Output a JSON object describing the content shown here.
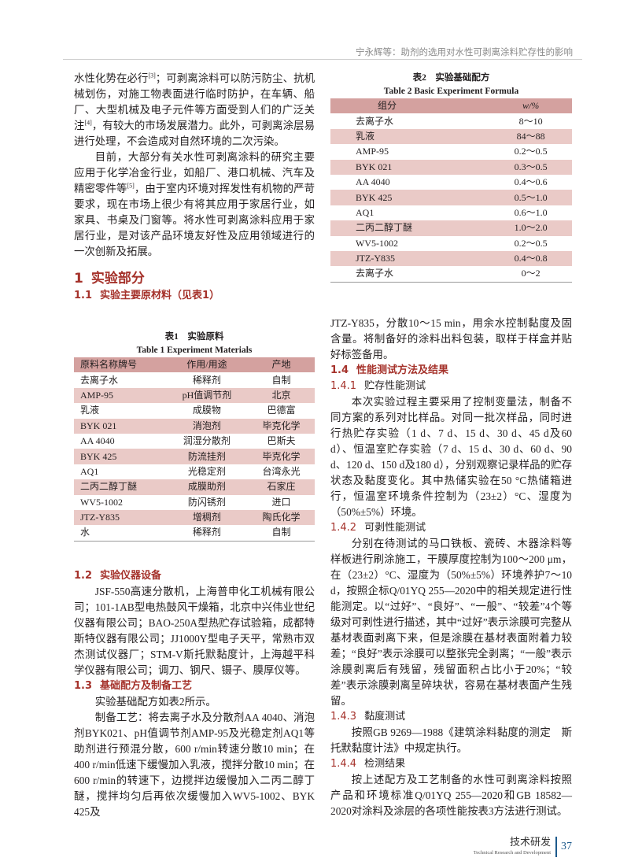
{
  "running_head": "宁永辉等：助剂的选用对水性可剥离涂料贮存性的影响",
  "left": {
    "p1": [
      "水性化势在必行",
      "[3]",
      "；可剥离涂料可以防污防尘、抗机械划伤，对施工物表面进行临时防护，在车辆、船厂、大型机械及电子元件等方面受到人们的广泛关注",
      "[4]",
      "，有较大的市场发展潜力。此外，可剥离涂层易进行处理，不会造成对自然环境的二次污染。"
    ],
    "p2": [
      "目前，大部分有关水性可剥离涂料的研究主要应用于化学冶金行业，如船厂、港口机械、汽车及精密零件等",
      "[5]",
      "，由于室内环境对挥发性有机物的严苛要求，现在市场上很少有将其应用于家居行业，如家具、书桌及门窗等。将水性可剥离涂料应用于家居行业，是对该产品环境友好性及应用领域进行的一次创新及拓展。"
    ],
    "h1_num": "1",
    "h1": "实验部分",
    "h11_num": "1.1",
    "h11": "实验主要原材料（见表1）",
    "h12_num": "1.2",
    "h12": "实验仪器设备",
    "p3": "JSF-550高速分散机，上海普申化工机械有限公司；101-1AB型电热鼓风干燥箱，北京中兴伟业世纪仪器有限公司；BAO-250A型热贮存试验箱，成都特斯特仪器有限公司；JJ1000Y型电子天平，常熟市双杰测试仪器厂；STM-V斯托默黏度计，上海越平科学仪器有限公司；调刀、钢尺、镊子、膜厚仪等。",
    "h13_num": "1.3",
    "h13": "基础配方及制备工艺",
    "p4": "实验基础配方如表2所示。",
    "p5": "制备工艺：将去离子水及分散剂AA 4040、消泡剂BYK021、pH值调节剂AMP-95及光稳定剂AQ1等助剂进行预混分散，600 r/min转速分散10 min；在400 r/min低速下缓慢加入乳液，搅拌分散10 min；在600 r/min的转速下，边搅拌边缓慢加入二丙二醇丁醚，搅拌均匀后再依次缓慢加入WV5-1002、BYK 425及"
  },
  "table1": {
    "title_cn": "表1　实验原料",
    "title_en": "Table 1   Experiment Materials",
    "headers": [
      "原料名称牌号",
      "作用/用途",
      "产地"
    ],
    "rows": [
      [
        "去离子水",
        "稀释剂",
        "自制"
      ],
      [
        "AMP-95",
        "pH值调节剂",
        "北京"
      ],
      [
        "乳液",
        "成膜物",
        "巴德富"
      ],
      [
        "BYK 021",
        "消泡剂",
        "毕克化学"
      ],
      [
        "AA 4040",
        "润湿分散剂",
        "巴斯夫"
      ],
      [
        "BYK 425",
        "防流挂剂",
        "毕克化学"
      ],
      [
        "AQ1",
        "光稳定剂",
        "台湾永光"
      ],
      [
        "二丙二醇丁醚",
        "成膜助剂",
        "石家庄"
      ],
      [
        "WV5-1002",
        "防闪锈剂",
        "进口"
      ],
      [
        "JTZ-Y835",
        "增稠剂",
        "陶氏化学"
      ],
      [
        "水",
        "稀释剂",
        "自制"
      ]
    ]
  },
  "table2": {
    "title_cn": "表2　实验基础配方",
    "title_en": "Table 2   Basic Experiment Formula",
    "headers": [
      "组分",
      "w/%"
    ],
    "rows": [
      [
        "去离子水",
        "8～10"
      ],
      [
        "乳液",
        "84～88"
      ],
      [
        "AMP-95",
        "0.2～0.5"
      ],
      [
        "BYK 021",
        "0.3～0.5"
      ],
      [
        "AA 4040",
        "0.4～0.6"
      ],
      [
        "BYK 425",
        "0.5～1.0"
      ],
      [
        "AQ1",
        "0.6～1.0"
      ],
      [
        "二丙二醇丁醚",
        "1.0～2.0"
      ],
      [
        "WV5-1002",
        "0.2～0.5"
      ],
      [
        "JTZ-Y835",
        "0.4～0.8"
      ],
      [
        "去离子水",
        "0～2"
      ]
    ]
  },
  "right": {
    "p1": "JTZ-Y835，分散10～15 min，用余水控制黏度及固含量。将制备好的涂料出料包装，取样于样盒并贴好标签备用。",
    "h14_num": "1.4",
    "h14": "性能测试方法及结果",
    "h141_num": "1.4.1",
    "h141": "贮存性能测试",
    "p2": "本次实验过程主要采用了控制变量法，制备不同方案的系列对比样品。对同一批次样品，同时进行热贮存实验（1 d、7 d、15 d、30 d、45 d及60 d）、恒温室贮存实验（7 d、15 d、30 d、60 d、90 d、120 d、150 d及180 d），分别观察记录样品的贮存状态及黏度变化。其中热储实验在50 °C热储箱进行，恒温室环境条件控制为（23±2）°C、湿度为（50%±5%）环境。",
    "h142_num": "1.4.2",
    "h142": "可剥性能测试",
    "p3": "分别在待测试的马口铁板、瓷砖、木器涂料等样板进行刷涂施工，干膜厚度控制为100～200 μm，在（23±2）°C、湿度为（50%±5%）环境养护7～10 d，按照企标Q/01YQ 255—2020中的相关规定进行性能测定。以“过好”、“良好”、“一般”、“较差”4个等级对可剥性进行描述，其中“过好”表示涂膜可完整从基材表面剥离下来，但是涂膜在基材表面附着力较差；“良好”表示涂膜可以整张完全剥离；“一般”表示涂膜剥离后有残留，残留面积占比小于20%；“较差”表示涂膜剥离呈碎块状，容易在基材表面产生残留。",
    "h143_num": "1.4.3",
    "h143": "黏度测试",
    "p4": "按照GB 9269—1988《建筑涂料黏度的测定　斯托默黏度计法》中规定执行。",
    "h144_num": "1.4.4",
    "h144": "检测结果",
    "p5": "按上述配方及工艺制备的水性可剥离涂料按照产品和环境标准Q/01YQ 255—2020和GB 18582—2020对涂料及涂层的各项性能按表3方法进行测试。"
  },
  "footer": {
    "section_cn": "技术研发",
    "section_en": "Technical Research and Development",
    "page": "37"
  }
}
